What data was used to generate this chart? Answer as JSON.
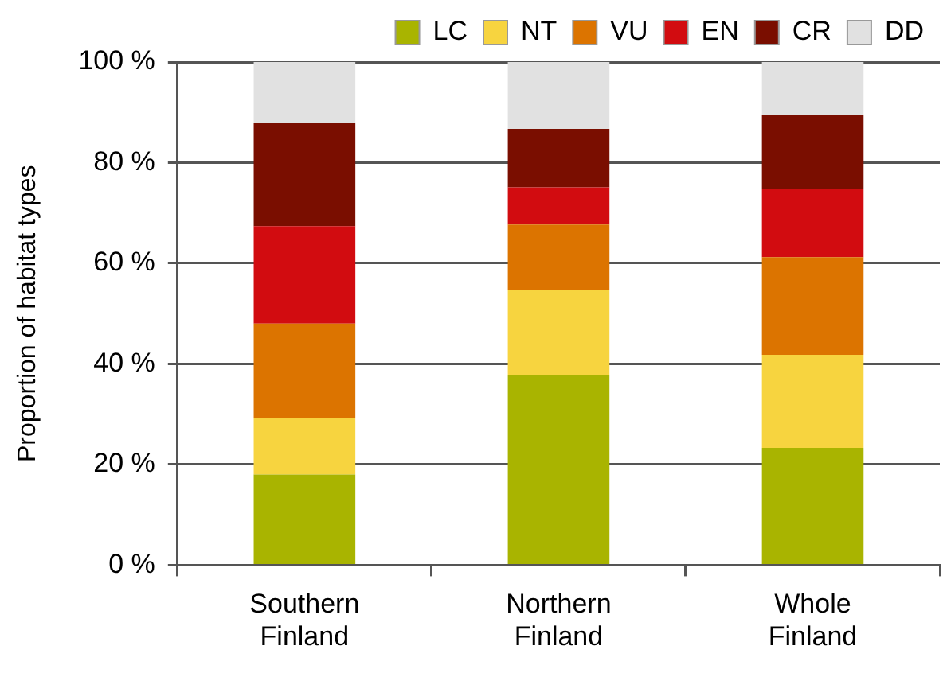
{
  "chart_data": {
    "type": "bar",
    "stacked": true,
    "categories": [
      "Southern Finland",
      "Northern Finland",
      "Whole Finland"
    ],
    "ylabel": "Proportion of habitat types",
    "ylim": [
      0,
      100
    ],
    "yticks": [
      {
        "value": 0,
        "label": "0 %"
      },
      {
        "value": 20,
        "label": "20 %"
      },
      {
        "value": 40,
        "label": "40 %"
      },
      {
        "value": 60,
        "label": "60 %"
      },
      {
        "value": 80,
        "label": "80 %"
      },
      {
        "value": 100,
        "label": "100 %"
      }
    ],
    "grid": "y",
    "legend": "top right",
    "series": [
      {
        "name": "LC",
        "color": "#a9b400",
        "values": [
          18.0,
          37.7,
          23.3
        ]
      },
      {
        "name": "NT",
        "color": "#f7d43f",
        "values": [
          11.3,
          16.9,
          18.5
        ]
      },
      {
        "name": "VU",
        "color": "#dc7400",
        "values": [
          18.7,
          13.1,
          19.4
        ]
      },
      {
        "name": "EN",
        "color": "#d20c10",
        "values": [
          19.4,
          7.4,
          13.5
        ]
      },
      {
        "name": "CR",
        "color": "#7a0e00",
        "values": [
          20.5,
          11.6,
          14.7
        ]
      },
      {
        "name": "DD",
        "color": "#e1e1e1",
        "values": [
          12.1,
          13.3,
          10.6
        ]
      }
    ]
  }
}
